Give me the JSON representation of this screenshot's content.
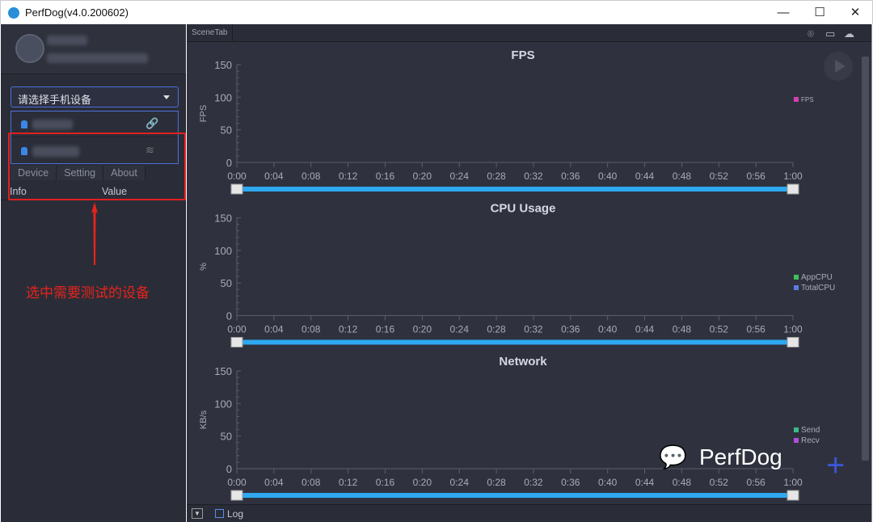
{
  "window": {
    "title": "PerfDog(v4.0.200602)",
    "minimize": "—",
    "maximize": "☐",
    "close": "✕"
  },
  "sidebar": {
    "device_select": {
      "placeholder": "请选择手机设备"
    },
    "devices": [
      {
        "connection": "usb-icon",
        "icon": "🔗"
      },
      {
        "connection": "wifi-icon",
        "icon": "≋"
      }
    ],
    "tabs": [
      "Device",
      "Setting",
      "About"
    ],
    "info_header": {
      "info": "Info",
      "value": "Value"
    }
  },
  "annotation": "选中需要测试的设备",
  "main": {
    "scene_tab": "SceneTab",
    "top_icons": [
      "location-icon",
      "folder-icon",
      "cloud-icon"
    ],
    "log_label": "Log"
  },
  "watermark": "PerfDog",
  "chart_data": [
    {
      "type": "line",
      "title": "FPS",
      "ylabel": "FPS",
      "ylim": [
        0,
        150
      ],
      "yticks": [
        "150",
        "100",
        "50",
        "0"
      ],
      "xticks": [
        "0:00",
        "0:04",
        "0:08",
        "0:12",
        "0:16",
        "0:20",
        "0:24",
        "0:28",
        "0:32",
        "0:36",
        "0:40",
        "0:44",
        "0:48",
        "0:52",
        "0:56",
        "1:00"
      ],
      "series": [
        {
          "name": "FPS",
          "color": "#d63fb0",
          "values": []
        }
      ],
      "grid": false
    },
    {
      "type": "line",
      "title": "CPU Usage",
      "ylabel": "%",
      "ylim": [
        0,
        150
      ],
      "yticks": [
        "150",
        "100",
        "50",
        "0"
      ],
      "xticks": [
        "0:00",
        "0:04",
        "0:08",
        "0:12",
        "0:16",
        "0:20",
        "0:24",
        "0:28",
        "0:32",
        "0:36",
        "0:40",
        "0:44",
        "0:48",
        "0:52",
        "0:56",
        "1:00"
      ],
      "series": [
        {
          "name": "AppCPU",
          "color": "#3fbf5a",
          "values": []
        },
        {
          "name": "TotalCPU",
          "color": "#5a7de0",
          "values": []
        }
      ],
      "grid": false
    },
    {
      "type": "line",
      "title": "Network",
      "ylabel": "KB/s",
      "ylim": [
        0,
        150
      ],
      "yticks": [
        "150",
        "100",
        "50",
        "0"
      ],
      "xticks": [
        "0:00",
        "0:04",
        "0:08",
        "0:12",
        "0:16",
        "0:20",
        "0:24",
        "0:28",
        "0:32",
        "0:36",
        "0:40",
        "0:44",
        "0:48",
        "0:52",
        "0:56",
        "1:00"
      ],
      "series": [
        {
          "name": "Send",
          "color": "#3fb88a",
          "values": []
        },
        {
          "name": "Recv",
          "color": "#b04fd8",
          "values": []
        }
      ],
      "grid": false
    }
  ]
}
